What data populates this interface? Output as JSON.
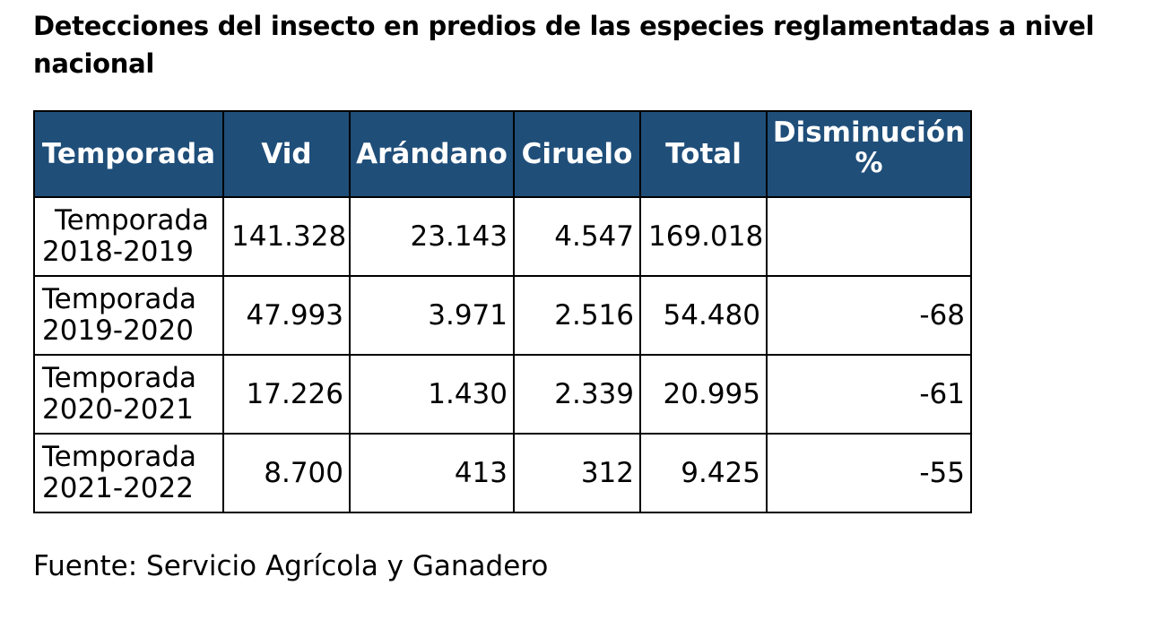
{
  "title": "Detecciones del insecto en predios de las especies reglamentadas a nivel nacional",
  "table": {
    "headers": {
      "temporada": "Temporada",
      "vid": "Vid",
      "arandano": "Arándano",
      "ciruelo": "Ciruelo",
      "total": "Total",
      "disminucion": "Disminución %"
    },
    "rows": [
      {
        "label_1": "Temporada",
        "label_2": "2018-2019",
        "vid": "141.328",
        "arandano": "23.143",
        "ciruelo": "4.547",
        "total": "169.018",
        "disminucion": ""
      },
      {
        "label_1": "Temporada",
        "label_2": "2019-2020",
        "vid": "47.993",
        "arandano": "3.971",
        "ciruelo": "2.516",
        "total": "54.480",
        "disminucion": "-68"
      },
      {
        "label_1": "Temporada",
        "label_2": "2020-2021",
        "vid": "17.226",
        "arandano": "1.430",
        "ciruelo": "2.339",
        "total": "20.995",
        "disminucion": "-61"
      },
      {
        "label_1": "Temporada",
        "label_2": "2021-2022",
        "vid": "8.700",
        "arandano": "413",
        "ciruelo": "312",
        "total": "9.425",
        "disminucion": "-55"
      }
    ]
  },
  "source": "Fuente: Servicio Agrícola y Ganadero",
  "colors": {
    "header_bg": "#1f4e79",
    "header_text": "#ffffff",
    "border": "#000000"
  }
}
